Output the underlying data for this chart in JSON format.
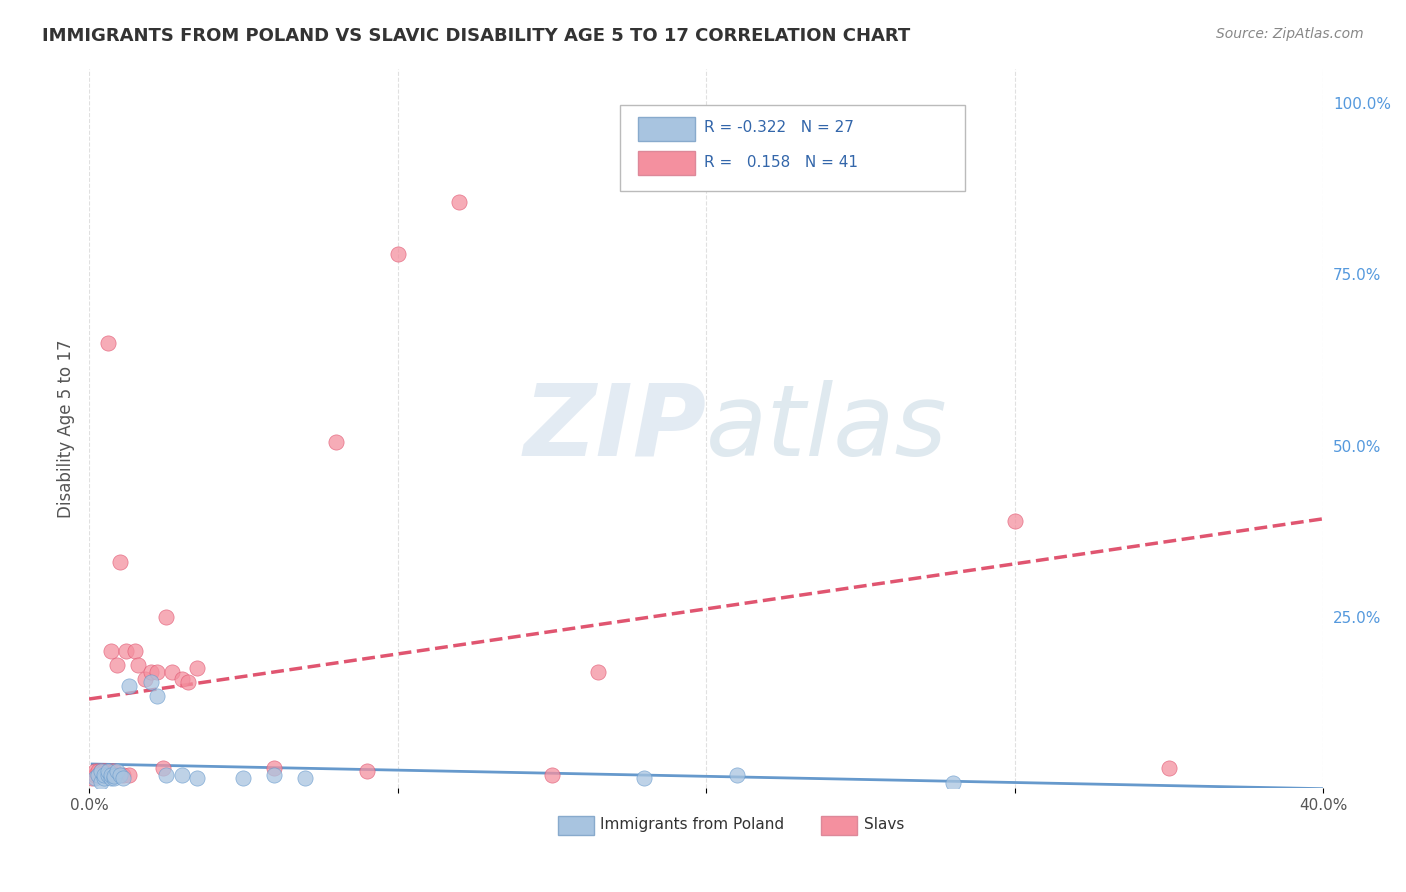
{
  "title": "IMMIGRANTS FROM POLAND VS SLAVIC DISABILITY AGE 5 TO 17 CORRELATION CHART",
  "source": "Source: ZipAtlas.com",
  "xlabel_bottom": "",
  "ylabel": "Disability Age 5 to 17",
  "xlim": [
    0.0,
    0.4
  ],
  "ylim": [
    0.0,
    1.05
  ],
  "x_ticks": [
    0.0,
    0.1,
    0.2,
    0.3,
    0.4
  ],
  "x_tick_labels": [
    "0.0%",
    "",
    "",
    "",
    "40.0%"
  ],
  "y_ticks_right": [
    0.0,
    0.25,
    0.5,
    0.75,
    1.0
  ],
  "y_tick_labels_right": [
    "",
    "25.0%",
    "50.0%",
    "75.0%",
    "100.0%"
  ],
  "legend_entries": [
    {
      "label": "R = -0.322   N = 27",
      "color": "#a8c4e0"
    },
    {
      "label": "R =   0.158   N = 41",
      "color": "#f4a0b0"
    }
  ],
  "poland_R": -0.322,
  "poland_N": 27,
  "slavs_R": 0.158,
  "slavs_N": 41,
  "poland_color": "#a8c4e0",
  "slavs_color": "#f4909f",
  "poland_line_color": "#6699cc",
  "slavs_line_color": "#e05570",
  "poland_line_style": "-",
  "slavs_line_style": "--",
  "background_color": "#ffffff",
  "grid_color": "#dddddd",
  "watermark_text": "ZIPatlas",
  "watermark_color": "#c8d8e8",
  "poland_x": [
    0.002,
    0.003,
    0.004,
    0.004,
    0.005,
    0.005,
    0.006,
    0.006,
    0.007,
    0.007,
    0.008,
    0.008,
    0.009,
    0.01,
    0.011,
    0.013,
    0.02,
    0.022,
    0.025,
    0.03,
    0.035,
    0.05,
    0.06,
    0.07,
    0.18,
    0.21,
    0.28
  ],
  "poland_y": [
    0.015,
    0.02,
    0.01,
    0.025,
    0.015,
    0.02,
    0.02,
    0.025,
    0.015,
    0.02,
    0.015,
    0.018,
    0.025,
    0.02,
    0.015,
    0.15,
    0.155,
    0.135,
    0.02,
    0.02,
    0.015,
    0.015,
    0.02,
    0.015,
    0.015,
    0.02,
    0.008
  ],
  "slavs_x": [
    0.001,
    0.002,
    0.002,
    0.003,
    0.003,
    0.004,
    0.004,
    0.005,
    0.005,
    0.005,
    0.006,
    0.006,
    0.007,
    0.007,
    0.008,
    0.008,
    0.009,
    0.01,
    0.011,
    0.012,
    0.013,
    0.015,
    0.016,
    0.018,
    0.02,
    0.022,
    0.024,
    0.025,
    0.027,
    0.03,
    0.032,
    0.035,
    0.06,
    0.08,
    0.09,
    0.1,
    0.12,
    0.15,
    0.165,
    0.3,
    0.35
  ],
  "slavs_y": [
    0.015,
    0.02,
    0.025,
    0.02,
    0.025,
    0.02,
    0.025,
    0.022,
    0.025,
    0.025,
    0.65,
    0.02,
    0.2,
    0.025,
    0.025,
    0.02,
    0.18,
    0.33,
    0.02,
    0.2,
    0.02,
    0.2,
    0.18,
    0.16,
    0.17,
    0.17,
    0.03,
    0.25,
    0.17,
    0.16,
    0.155,
    0.175,
    0.03,
    0.505,
    0.025,
    0.78,
    0.855,
    0.02,
    0.17,
    0.39,
    0.03
  ]
}
